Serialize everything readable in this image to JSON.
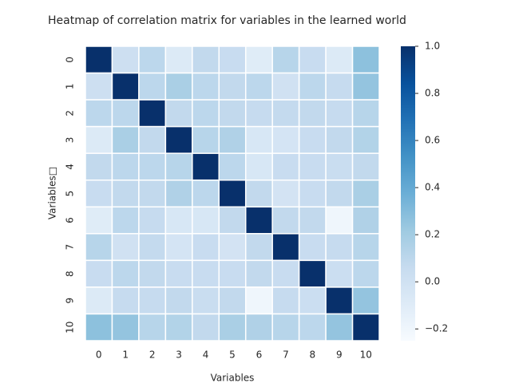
{
  "chart_data": {
    "type": "heatmap",
    "title": "Heatmap of correlation matrix for variables in the learned world",
    "x_label": "Variables",
    "y_label": "Variables□",
    "categories": [
      "0",
      "1",
      "2",
      "3",
      "4",
      "5",
      "6",
      "7",
      "8",
      "9",
      "10"
    ],
    "values": [
      [
        1,
        0.02,
        0.1,
        -0.08,
        0.08,
        0.05,
        -0.1,
        0.12,
        0.05,
        -0.08,
        0.27
      ],
      [
        0.02,
        1,
        0.1,
        0.17,
        0.1,
        0.08,
        0.1,
        0,
        0.1,
        0.06,
        0.25
      ],
      [
        0.1,
        0.1,
        1,
        0.08,
        0.1,
        0.08,
        0.06,
        0.07,
        0.08,
        0.06,
        0.12
      ],
      [
        -0.08,
        0.17,
        0.08,
        1,
        0.12,
        0.15,
        -0.05,
        -0.03,
        0.05,
        0.08,
        0.14
      ],
      [
        0.08,
        0.1,
        0.1,
        0.12,
        1,
        0.1,
        -0.05,
        0.05,
        0.05,
        0.04,
        0.08
      ],
      [
        0.05,
        0.08,
        0.08,
        0.15,
        0.1,
        1,
        0.08,
        -0.02,
        0.05,
        0.08,
        0.17
      ],
      [
        -0.1,
        0.1,
        0.06,
        -0.05,
        -0.05,
        0.08,
        1,
        0.08,
        0.08,
        -0.2,
        0.15
      ],
      [
        0.12,
        0,
        0.07,
        -0.03,
        0.05,
        -0.02,
        0.08,
        1,
        0.05,
        0.06,
        0.12
      ],
      [
        0.05,
        0.1,
        0.08,
        0.05,
        0.05,
        0.05,
        0.08,
        0.05,
        1,
        0.03,
        0.1
      ],
      [
        -0.08,
        0.06,
        0.06,
        0.08,
        0.04,
        0.08,
        -0.2,
        0.06,
        0.03,
        1,
        0.25
      ],
      [
        0.27,
        0.25,
        0.12,
        0.14,
        0.08,
        0.17,
        0.15,
        0.12,
        0.1,
        0.25,
        1
      ]
    ],
    "colormap": "Blues",
    "vlim": [
      -0.25,
      1.0
    ],
    "cbar_ticks": [
      {
        "value": -0.2,
        "label": "−0.2"
      },
      {
        "value": 0,
        "label": "0.0"
      },
      0.2,
      0.4,
      0.6,
      0.8,
      {
        "value": 1,
        "label": "1.0"
      }
    ]
  }
}
